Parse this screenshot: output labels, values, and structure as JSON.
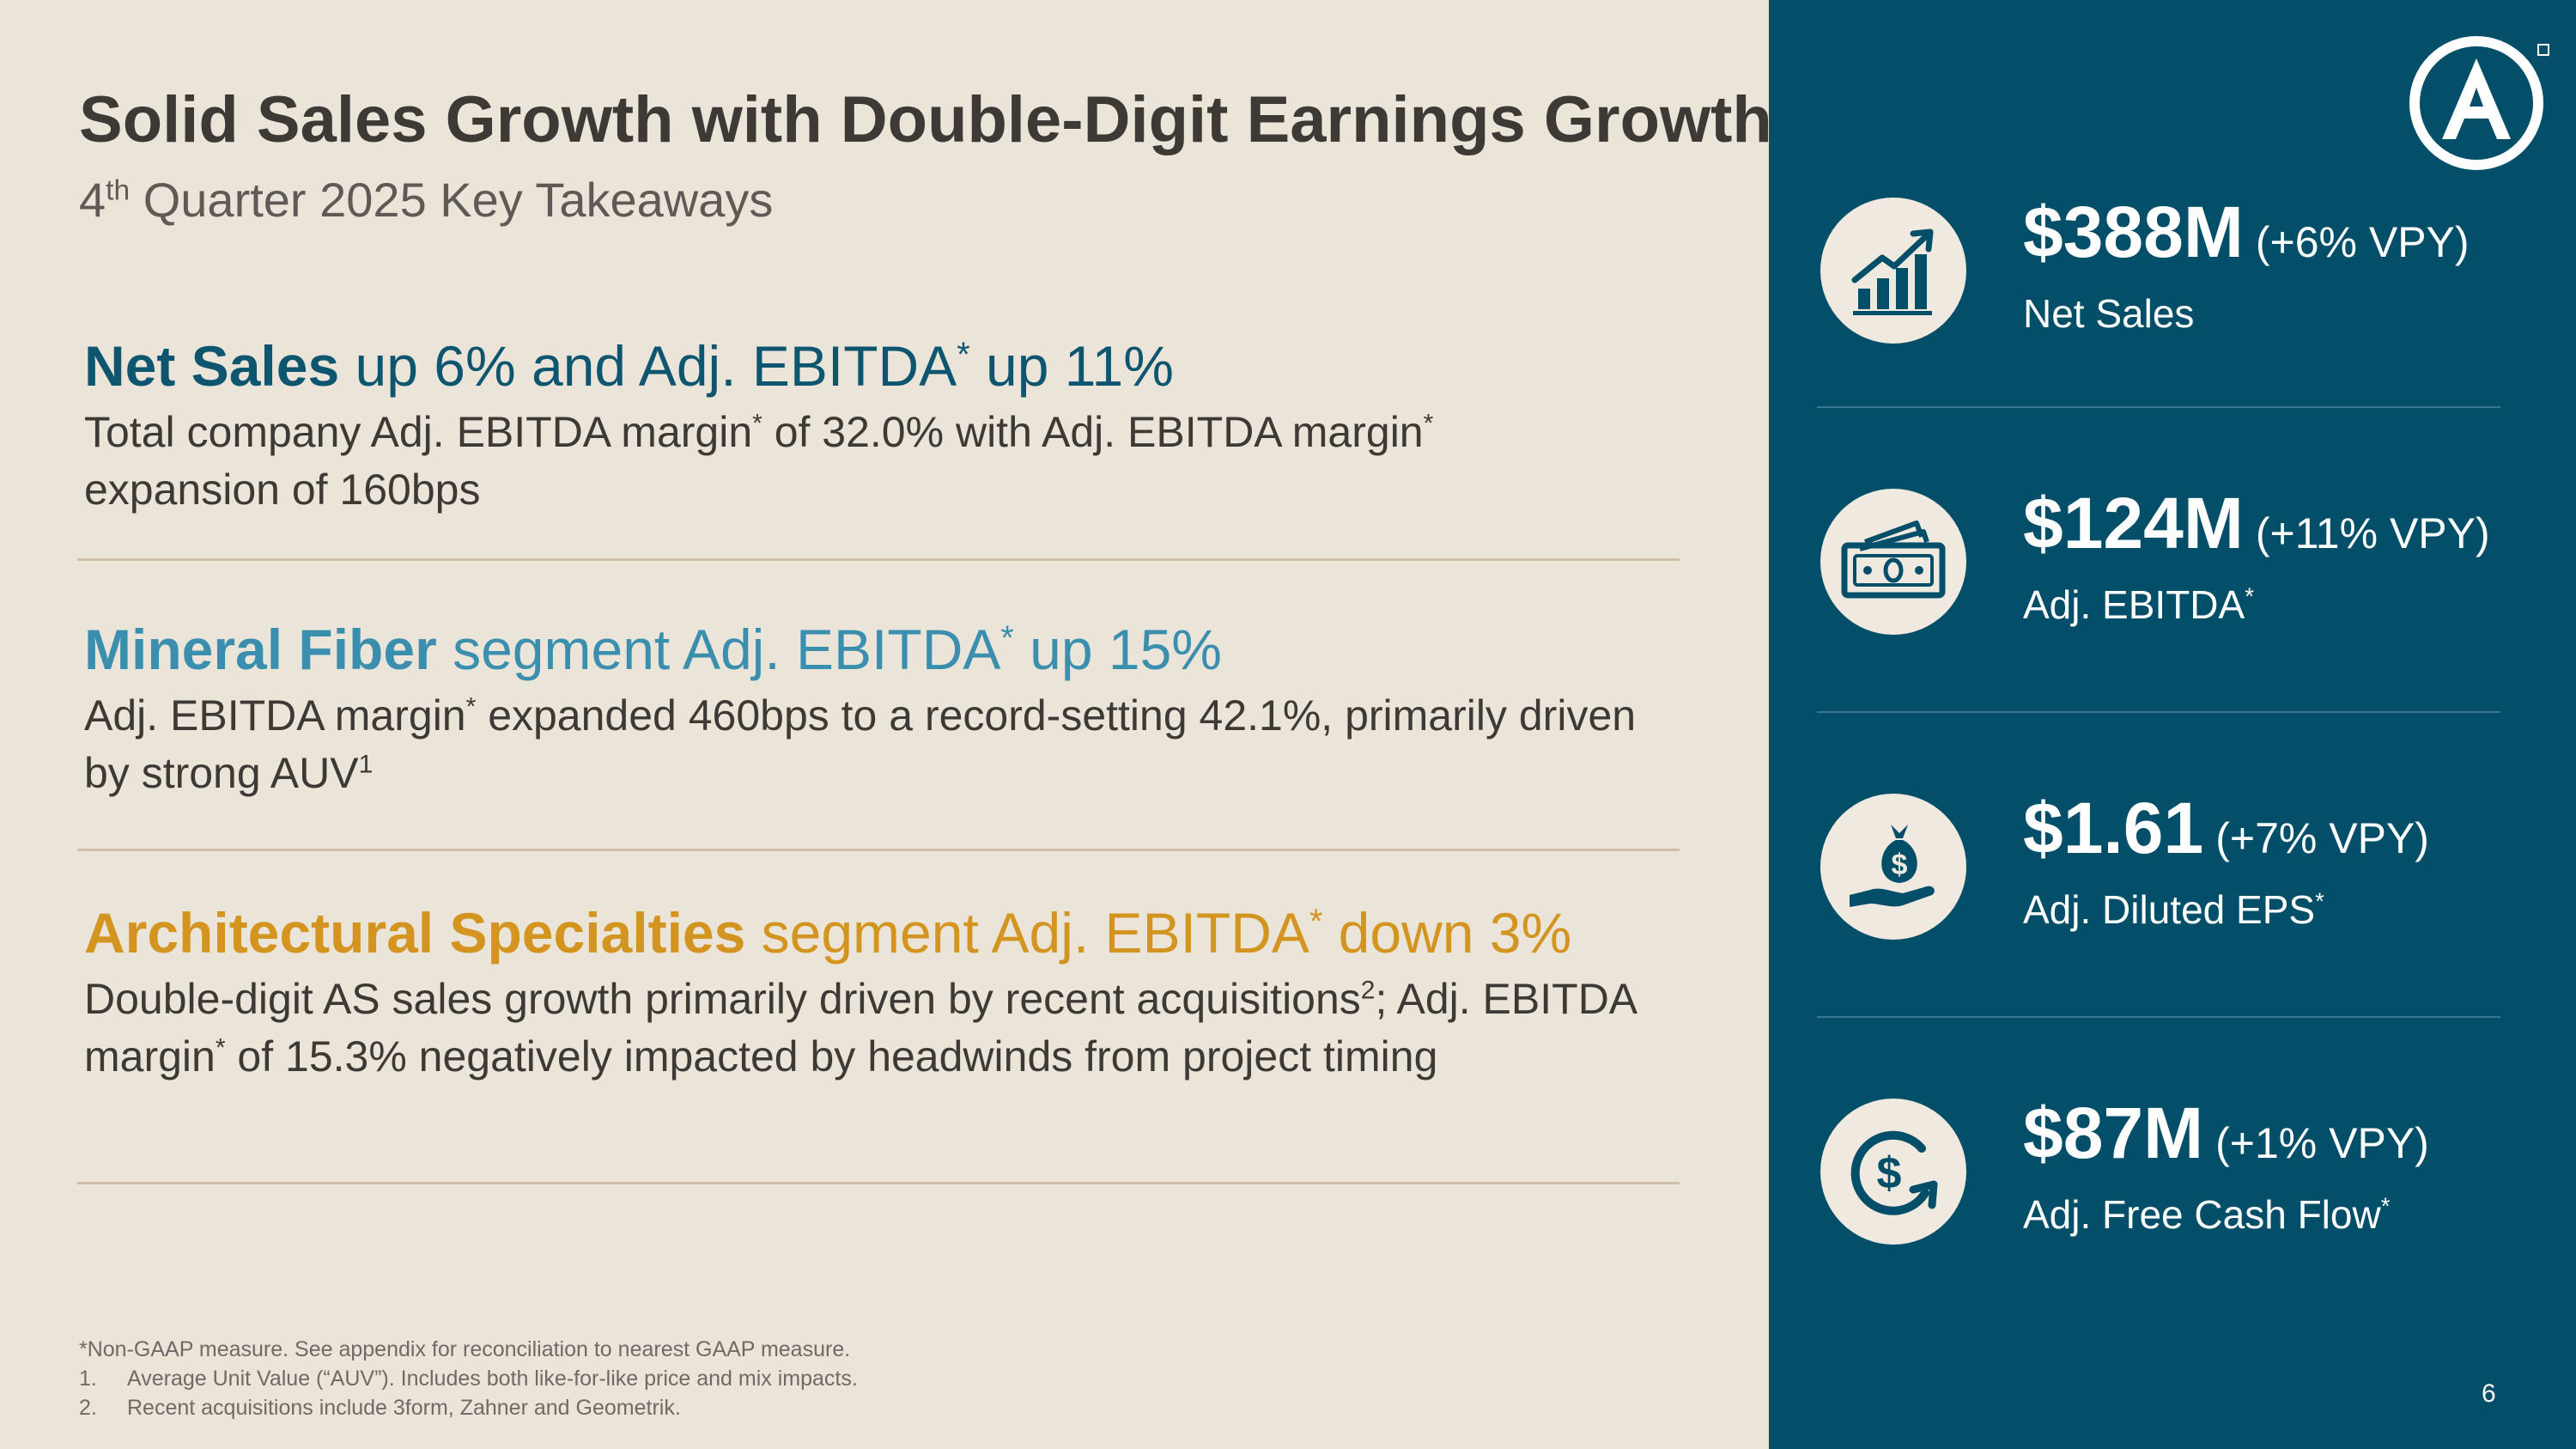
{
  "slide": {
    "title": "Solid Sales Growth with Double-Digit Earnings Growth",
    "subtitle": {
      "prefix": "4",
      "sup": "th",
      "rest": " Quarter 2025 Key Takeaways"
    },
    "sections": [
      {
        "heading_bold": "Net Sales",
        "heading_rest": " up 6% and Adj. EBITDA",
        "heading_sup": "*",
        "heading_end": " up 11%",
        "body": [
          "Total company Adj. EBITDA margin",
          "*",
          " of 32.0% with Adj. EBITDA margin",
          "*",
          " expansion of 160bps"
        ]
      },
      {
        "heading_bold": "Mineral Fiber",
        "heading_rest": " segment Adj. EBITDA",
        "heading_sup": "*",
        "heading_end": " up 15%",
        "body": [
          "Adj. EBITDA margin",
          "*",
          " expanded 460bps to a record-setting 42.1%, primarily driven by strong AUV",
          "1"
        ]
      },
      {
        "heading_bold": "Architectural Specialties",
        "heading_rest": " segment Adj. EBITDA",
        "heading_sup": "*",
        "heading_end": " down 3%",
        "body": [
          "Double-digit AS sales growth primarily driven by recent acquisitions",
          "2",
          "; Adj. EBITDA margin",
          "*",
          " of 15.3% negatively impacted by headwinds from project timing"
        ]
      }
    ],
    "footnotes": {
      "note": "*Non-GAAP measure. See appendix for reconciliation to nearest GAAP measure.",
      "items": [
        {
          "num": "1.",
          "text": "Average Unit Value (“AUV”). Includes both like-for-like price and mix impacts."
        },
        {
          "num": "2.",
          "text": "Recent acquisitions include 3form, Zahner and Geometrik."
        }
      ]
    },
    "page_number": "6"
  },
  "panel": {
    "logo_icon": "armstrong-a-logo",
    "metrics": [
      {
        "icon": "growth-chart-icon",
        "value": "$388M",
        "change": "(+6% VPY)",
        "label": "Net Sales",
        "label_sup": ""
      },
      {
        "icon": "cash-bills-icon",
        "value": "$124M",
        "change": "(+11% VPY)",
        "label": "Adj. EBITDA",
        "label_sup": "*"
      },
      {
        "icon": "money-bag-hand-icon",
        "value": "$1.61",
        "change": "(+7% VPY)",
        "label": "Adj. Diluted EPS",
        "label_sup": "*"
      },
      {
        "icon": "cash-flow-cycle-icon",
        "value": "$87M",
        "change": "(+1% VPY)",
        "label": "Adj. Free Cash Flow",
        "label_sup": "*"
      }
    ]
  },
  "colors": {
    "background": "#ebe4d9",
    "panel": "#034e68",
    "net_sales": "#0e5670",
    "mineral_fiber": "#3a8faf",
    "architectural": "#d39420",
    "text": "#3d3935"
  }
}
